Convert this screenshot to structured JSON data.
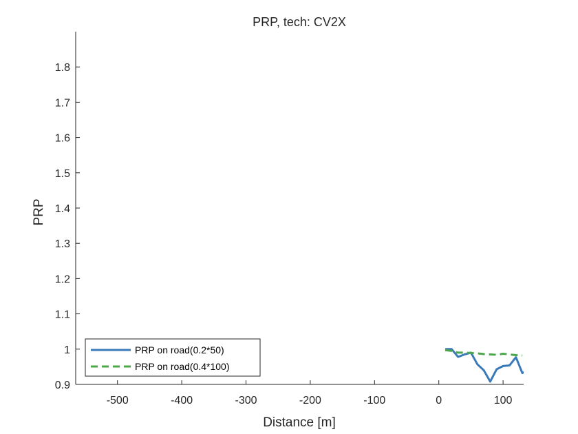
{
  "chart_data": {
    "type": "line",
    "title": "PRP, tech: CV2X",
    "xlabel": "Distance [m]",
    "ylabel": "PRP",
    "xlim": [
      -565,
      132
    ],
    "ylim": [
      0.9,
      1.9
    ],
    "x_ticks": [
      -500,
      -400,
      -300,
      -200,
      -100,
      0,
      100
    ],
    "x_tick_labels": [
      "-500",
      "-400",
      "-300",
      "-200",
      "-100",
      "0",
      "100"
    ],
    "y_ticks": [
      0.9,
      1,
      1.1,
      1.2,
      1.3,
      1.4,
      1.5,
      1.6,
      1.7,
      1.8
    ],
    "y_tick_labels": [
      "0.9",
      "1",
      "1.1",
      "1.2",
      "1.3",
      "1.4",
      "1.5",
      "1.6",
      "1.7",
      "1.8"
    ],
    "grid": false,
    "legend_position": "bottom-left",
    "series": [
      {
        "name": "PRP on road(0.2*50)",
        "color": "#3a7ab8",
        "dash": "solid",
        "x": [
          10,
          20,
          30,
          40,
          50,
          60,
          70,
          80,
          90,
          100,
          110,
          120,
          130,
          135
        ],
        "y": [
          1.0,
          1.0,
          0.978,
          0.985,
          0.99,
          0.957,
          0.94,
          0.908,
          0.943,
          0.952,
          0.954,
          0.977,
          0.932,
          0.937
        ]
      },
      {
        "name": "PRP on road(0.4*100)",
        "color": "#4aa84a",
        "dash": "dashed",
        "x": [
          10,
          20,
          30,
          40,
          50,
          60,
          70,
          80,
          90,
          100,
          110,
          120,
          130
        ],
        "y": [
          0.997,
          0.995,
          0.99,
          0.99,
          0.989,
          0.988,
          0.986,
          0.985,
          0.984,
          0.987,
          0.985,
          0.983,
          0.982
        ]
      }
    ]
  }
}
